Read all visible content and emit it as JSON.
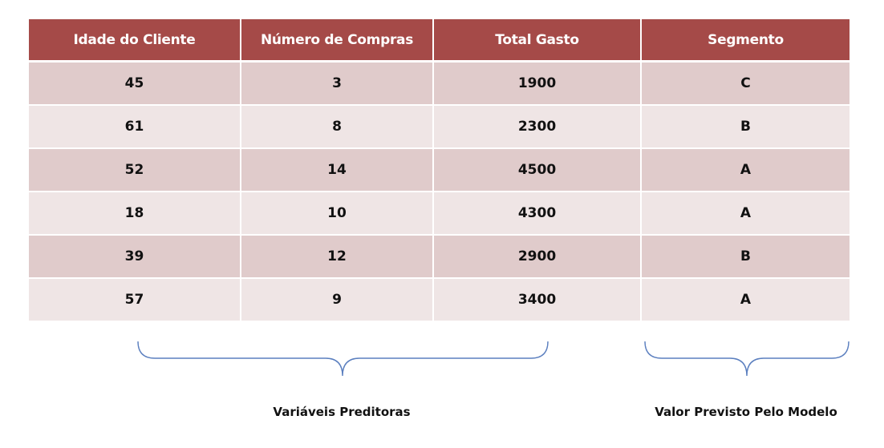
{
  "table": {
    "headers": [
      "Idade do Cliente",
      "Número de Compras",
      "Total Gasto",
      "Segmento"
    ],
    "rows": [
      [
        "45",
        "3",
        "1900",
        "C"
      ],
      [
        "61",
        "8",
        "2300",
        "B"
      ],
      [
        "52",
        "14",
        "4500",
        "A"
      ],
      [
        "18",
        "10",
        "4300",
        "A"
      ],
      [
        "39",
        "12",
        "2900",
        "B"
      ],
      [
        "57",
        "9",
        "3400",
        "A"
      ]
    ]
  },
  "annotations": {
    "predictors_label": "Variáveis Preditoras",
    "target_label": "Valor Previsto Pelo Modelo"
  },
  "colors": {
    "header_bg": "#a54a48",
    "row_dark": "#e0cbcb",
    "row_light": "#efe5e5",
    "brace": "#5b7fbf"
  }
}
